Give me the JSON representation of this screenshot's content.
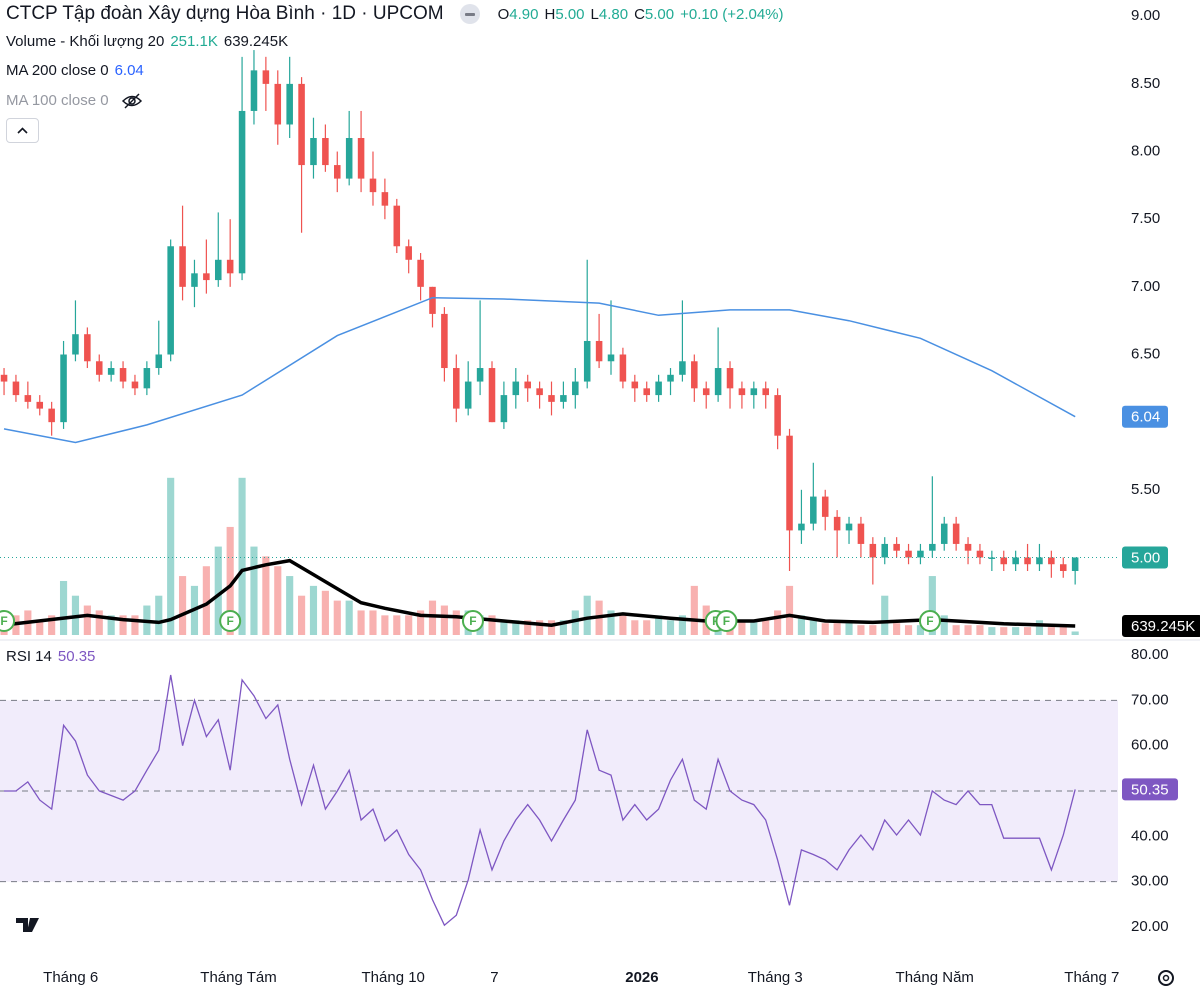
{
  "chart_data": {
    "type": "candlestick",
    "title": "CTCP Tập đoàn Xây dựng Hòa Bình · 1D · UPCOM",
    "legend_ohlc": [
      {
        "label": "O",
        "value": "4.90"
      },
      {
        "label": "H",
        "value": "5.00"
      },
      {
        "label": "L",
        "value": "4.80"
      },
      {
        "label": "C",
        "value": "5.00"
      }
    ],
    "change": "+0.10 (+2.04%)",
    "up_color": "#26a69a",
    "down_color": "#ef5350",
    "ohlc": [
      [
        6.35,
        6.4,
        6.2,
        6.3
      ],
      [
        6.3,
        6.35,
        6.15,
        6.2
      ],
      [
        6.2,
        6.3,
        6.1,
        6.15
      ],
      [
        6.15,
        6.2,
        6.05,
        6.1
      ],
      [
        6.1,
        6.15,
        5.9,
        6.0
      ],
      [
        6.0,
        6.6,
        5.95,
        6.5
      ],
      [
        6.5,
        6.9,
        6.45,
        6.65
      ],
      [
        6.65,
        6.7,
        6.4,
        6.45
      ],
      [
        6.45,
        6.5,
        6.3,
        6.35
      ],
      [
        6.35,
        6.45,
        6.3,
        6.4
      ],
      [
        6.4,
        6.45,
        6.25,
        6.3
      ],
      [
        6.3,
        6.35,
        6.2,
        6.25
      ],
      [
        6.25,
        6.45,
        6.2,
        6.4
      ],
      [
        6.4,
        6.75,
        6.35,
        6.5
      ],
      [
        6.5,
        7.35,
        6.45,
        7.3
      ],
      [
        7.3,
        7.6,
        6.9,
        7.0
      ],
      [
        7.0,
        7.2,
        6.85,
        7.1
      ],
      [
        7.1,
        7.35,
        6.95,
        7.05
      ],
      [
        7.05,
        7.55,
        7.0,
        7.2
      ],
      [
        7.2,
        7.5,
        7.0,
        7.1
      ],
      [
        7.1,
        8.7,
        7.05,
        8.3
      ],
      [
        8.3,
        8.75,
        8.2,
        8.6
      ],
      [
        8.6,
        8.7,
        8.3,
        8.5
      ],
      [
        8.5,
        8.6,
        8.05,
        8.2
      ],
      [
        8.2,
        8.7,
        8.1,
        8.5
      ],
      [
        8.5,
        8.55,
        7.4,
        7.9
      ],
      [
        7.9,
        8.25,
        7.8,
        8.1
      ],
      [
        8.1,
        8.2,
        7.85,
        7.9
      ],
      [
        7.9,
        8.0,
        7.7,
        7.8
      ],
      [
        7.8,
        8.3,
        7.75,
        8.1
      ],
      [
        8.1,
        8.3,
        7.7,
        7.8
      ],
      [
        7.8,
        8.0,
        7.6,
        7.7
      ],
      [
        7.7,
        7.8,
        7.5,
        7.6
      ],
      [
        7.6,
        7.65,
        7.25,
        7.3
      ],
      [
        7.3,
        7.35,
        7.1,
        7.2
      ],
      [
        7.2,
        7.25,
        6.9,
        7.0
      ],
      [
        7.0,
        7.0,
        6.7,
        6.8
      ],
      [
        6.8,
        6.85,
        6.3,
        6.4
      ],
      [
        6.4,
        6.5,
        6.0,
        6.1
      ],
      [
        6.1,
        6.45,
        6.05,
        6.3
      ],
      [
        6.3,
        6.9,
        6.2,
        6.4
      ],
      [
        6.4,
        6.45,
        6.0,
        6.0
      ],
      [
        6.0,
        6.3,
        5.95,
        6.2
      ],
      [
        6.2,
        6.4,
        6.1,
        6.3
      ],
      [
        6.3,
        6.35,
        6.15,
        6.25
      ],
      [
        6.25,
        6.3,
        6.1,
        6.2
      ],
      [
        6.2,
        6.3,
        6.05,
        6.15
      ],
      [
        6.15,
        6.3,
        6.1,
        6.2
      ],
      [
        6.2,
        6.4,
        6.1,
        6.3
      ],
      [
        6.3,
        7.2,
        6.25,
        6.6
      ],
      [
        6.6,
        6.8,
        6.4,
        6.45
      ],
      [
        6.45,
        6.9,
        6.35,
        6.5
      ],
      [
        6.5,
        6.55,
        6.25,
        6.3
      ],
      [
        6.3,
        6.35,
        6.15,
        6.25
      ],
      [
        6.25,
        6.3,
        6.15,
        6.2
      ],
      [
        6.2,
        6.35,
        6.15,
        6.3
      ],
      [
        6.3,
        6.4,
        6.2,
        6.35
      ],
      [
        6.35,
        6.9,
        6.3,
        6.45
      ],
      [
        6.45,
        6.5,
        6.15,
        6.25
      ],
      [
        6.25,
        6.3,
        6.1,
        6.2
      ],
      [
        6.2,
        6.7,
        6.15,
        6.4
      ],
      [
        6.4,
        6.45,
        6.1,
        6.25
      ],
      [
        6.25,
        6.3,
        6.1,
        6.2
      ],
      [
        6.2,
        6.3,
        6.1,
        6.25
      ],
      [
        6.25,
        6.3,
        6.1,
        6.2
      ],
      [
        6.2,
        6.25,
        5.8,
        5.9
      ],
      [
        5.9,
        5.95,
        4.9,
        5.2
      ],
      [
        5.2,
        5.5,
        5.1,
        5.25
      ],
      [
        5.25,
        5.7,
        5.2,
        5.45
      ],
      [
        5.45,
        5.5,
        5.2,
        5.3
      ],
      [
        5.3,
        5.35,
        5.0,
        5.2
      ],
      [
        5.2,
        5.3,
        5.1,
        5.25
      ],
      [
        5.25,
        5.3,
        5.0,
        5.1
      ],
      [
        5.1,
        5.15,
        4.8,
        5.0
      ],
      [
        5.0,
        5.15,
        4.95,
        5.1
      ],
      [
        5.1,
        5.15,
        5.0,
        5.05
      ],
      [
        5.05,
        5.1,
        4.95,
        5.0
      ],
      [
        5.0,
        5.1,
        4.95,
        5.05
      ],
      [
        5.05,
        5.6,
        5.0,
        5.1
      ],
      [
        5.1,
        5.3,
        5.05,
        5.25
      ],
      [
        5.25,
        5.3,
        5.05,
        5.1
      ],
      [
        5.1,
        5.15,
        4.95,
        5.05
      ],
      [
        5.05,
        5.1,
        4.95,
        5.0
      ],
      [
        5.0,
        5.05,
        4.9,
        5.0
      ],
      [
        5.0,
        5.05,
        4.9,
        4.95
      ],
      [
        4.95,
        5.05,
        4.9,
        5.0
      ],
      [
        5.0,
        5.1,
        4.9,
        4.95
      ],
      [
        4.95,
        5.1,
        4.9,
        5.0
      ],
      [
        5.0,
        5.05,
        4.85,
        4.95
      ],
      [
        4.95,
        5.0,
        4.85,
        4.9
      ],
      [
        4.9,
        5.0,
        4.8,
        5.0
      ]
    ],
    "xlim": [
      -0.34,
      93.6
    ],
    "xticks": [
      {
        "value": 5.6,
        "label": "Tháng 6"
      },
      {
        "value": 19.7,
        "label": "Tháng Tám"
      },
      {
        "value": 32.7,
        "label": "Tháng 10"
      },
      {
        "value": 41.2,
        "label": "7"
      },
      {
        "value": 53.6,
        "label": "2026"
      },
      {
        "value": 64.8,
        "label": "Tháng 3"
      },
      {
        "value": 78.2,
        "label": "Tháng Năm"
      },
      {
        "value": 91.4,
        "label": "Tháng 7"
      }
    ],
    "ylim": [
      4.39,
      9.12
    ],
    "yticks": [
      {
        "value": 9,
        "label": "9.00"
      },
      {
        "value": 8.5,
        "label": "8.50"
      },
      {
        "value": 8,
        "label": "8.00"
      },
      {
        "value": 7.5,
        "label": "7.50"
      },
      {
        "value": 7,
        "label": "7.00"
      },
      {
        "value": 6.5,
        "label": "6.50"
      },
      {
        "value": 5.5,
        "label": "5.50"
      }
    ],
    "last_price_label": "5.00",
    "ma200": {
      "name": "MA 200 close 0",
      "color": "#4a90e2",
      "x": [
        0,
        6,
        12,
        20,
        28,
        36,
        42,
        50,
        55,
        61,
        66,
        71,
        77,
        83,
        90
      ],
      "values": [
        5.95,
        5.85,
        5.98,
        6.2,
        6.64,
        6.92,
        6.91,
        6.88,
        6.79,
        6.83,
        6.83,
        6.75,
        6.62,
        6.38,
        6.04
      ]
    },
    "ma100": {
      "name": "MA 100 close 0"
    },
    "volume": {
      "name": "Volume - Khối lượng 20",
      "last_label": "251.1K",
      "ylim": [
        0,
        11400000
      ],
      "values": [
        1050000,
        1400000,
        1750000,
        1050000,
        1400000,
        3850000,
        2800000,
        2100000,
        1750000,
        1400000,
        1400000,
        1400000,
        2100000,
        2800000,
        11200000,
        4200000,
        3500000,
        4900000,
        6300000,
        7700000,
        11200000,
        6300000,
        5600000,
        4900000,
        4200000,
        2800000,
        3500000,
        3150000,
        2450000,
        2450000,
        1750000,
        1750000,
        1400000,
        1400000,
        1400000,
        1750000,
        2450000,
        2100000,
        1750000,
        1750000,
        1400000,
        1400000,
        1050000,
        1050000,
        1050000,
        1050000,
        1050000,
        1050000,
        1750000,
        2800000,
        2450000,
        1750000,
        1400000,
        1050000,
        1050000,
        1400000,
        1050000,
        1400000,
        3500000,
        2100000,
        1400000,
        1050000,
        1050000,
        1050000,
        1050000,
        1750000,
        3500000,
        1400000,
        1050000,
        840000,
        840000,
        840000,
        700000,
        700000,
        2800000,
        840000,
        700000,
        700000,
        4200000,
        1400000,
        700000,
        700000,
        700000,
        560000,
        560000,
        560000,
        560000,
        1050000,
        560000,
        560000,
        251100
      ]
    },
    "volume_ma": {
      "color": "#000000",
      "last_label": "639.245K",
      "x": [
        0,
        7,
        10,
        13,
        14,
        17,
        19,
        20,
        22,
        24,
        26,
        28,
        30,
        32,
        35,
        38,
        42,
        46,
        49,
        52,
        56,
        59,
        63,
        66,
        69,
        73,
        78,
        84,
        90
      ],
      "values": [
        710000,
        1400000,
        1100000,
        900000,
        1100000,
        2200000,
        3500000,
        4600000,
        5000000,
        5300000,
        4300000,
        3300000,
        2300000,
        1900000,
        1400000,
        1300000,
        1000000,
        700000,
        1200000,
        1500000,
        1200000,
        1000000,
        1000000,
        1400000,
        1000000,
        900000,
        1100000,
        800000,
        639245
      ]
    },
    "events": [
      {
        "x": 0,
        "label": "F"
      },
      {
        "x": 19,
        "label": "F"
      },
      {
        "x": 39.4,
        "label": "F"
      },
      {
        "x": 59.8,
        "label": "F"
      },
      {
        "x": 60.7,
        "label": "F"
      },
      {
        "x": 77.8,
        "label": "F"
      }
    ],
    "rsi": {
      "name": "RSI 14",
      "color": "#7e57c2",
      "ylim": [
        14.93,
        83.31
      ],
      "band": [
        30,
        70
      ],
      "midline": 50,
      "yticks": [
        {
          "value": 80,
          "label": "80.00"
        },
        {
          "value": 70,
          "label": "70.00"
        },
        {
          "value": 60,
          "label": "60.00"
        },
        {
          "value": 50,
          "label": "50.00"
        },
        {
          "value": 40,
          "label": "40.00"
        },
        {
          "value": 30,
          "label": "30.00"
        },
        {
          "value": 20,
          "label": "20.00"
        }
      ],
      "values": [
        50,
        50,
        52,
        48,
        46,
        64.5,
        61,
        53.5,
        50,
        49,
        48,
        50,
        54.6,
        59,
        75.6,
        60,
        70,
        62,
        65.7,
        54.6,
        74.5,
        71,
        66,
        69,
        57,
        47,
        55.7,
        46,
        50,
        54.6,
        43.6,
        46,
        39,
        41.4,
        36,
        32.6,
        26,
        20.4,
        22.6,
        30.4,
        41.4,
        32.6,
        39,
        43.6,
        47,
        43.6,
        39,
        43.6,
        48,
        63.5,
        54.6,
        53.5,
        43.6,
        47,
        43.6,
        46,
        52.4,
        57,
        48,
        46,
        57,
        50,
        48,
        47,
        43.6,
        34.8,
        24.8,
        37,
        36,
        34.8,
        32.6,
        37,
        40.3,
        37,
        43.6,
        40.3,
        43.6,
        40.3,
        50,
        48,
        47,
        50,
        47,
        47,
        39.6,
        39.6,
        39.6,
        39.6,
        32.6,
        40.3,
        50.35
      ]
    }
  }
}
